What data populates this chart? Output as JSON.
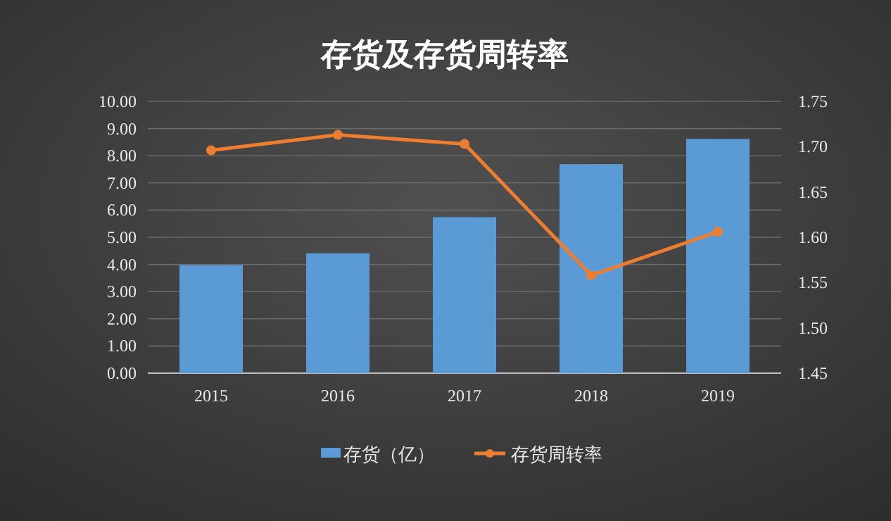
{
  "chart_data": {
    "type": "bar",
    "title": "存货及存货周转率",
    "categories": [
      "2015",
      "2016",
      "2017",
      "2018",
      "2019"
    ],
    "series": [
      {
        "name": "存货（亿）",
        "color": "#5b9bd5",
        "values": [
          3.98,
          4.41,
          5.74,
          7.69,
          8.62
        ]
      },
      {
        "name": "存货周转率",
        "type": "line",
        "axis": "y2",
        "color": "#ed7d31",
        "marker": "circle",
        "values": [
          1.696,
          1.713,
          1.703,
          1.558,
          1.606
        ]
      }
    ],
    "ylim": [
      0,
      10
    ],
    "yticks": [
      {
        "value": 0,
        "label": "0.00"
      },
      {
        "value": 1,
        "label": "1.00"
      },
      {
        "value": 2,
        "label": "2.00"
      },
      {
        "value": 3,
        "label": "3.00"
      },
      {
        "value": 4,
        "label": "4.00"
      },
      {
        "value": 5,
        "label": "5.00"
      },
      {
        "value": 6,
        "label": "6.00"
      },
      {
        "value": 7,
        "label": "7.00"
      },
      {
        "value": 8,
        "label": "8.00"
      },
      {
        "value": 9,
        "label": "9.00"
      },
      {
        "value": 10,
        "label": "10.00"
      }
    ],
    "y2lim": [
      1.45,
      1.75
    ],
    "y2ticks": [
      {
        "value": 1.45,
        "label": "1.45"
      },
      {
        "value": 1.5,
        "label": "1.50"
      },
      {
        "value": 1.55,
        "label": "1.55"
      },
      {
        "value": 1.6,
        "label": "1.60"
      },
      {
        "value": 1.65,
        "label": "1.65"
      },
      {
        "value": 1.7,
        "label": "1.70"
      },
      {
        "value": 1.75,
        "label": "1.75"
      }
    ],
    "grid": "y",
    "legend": "bottom"
  }
}
